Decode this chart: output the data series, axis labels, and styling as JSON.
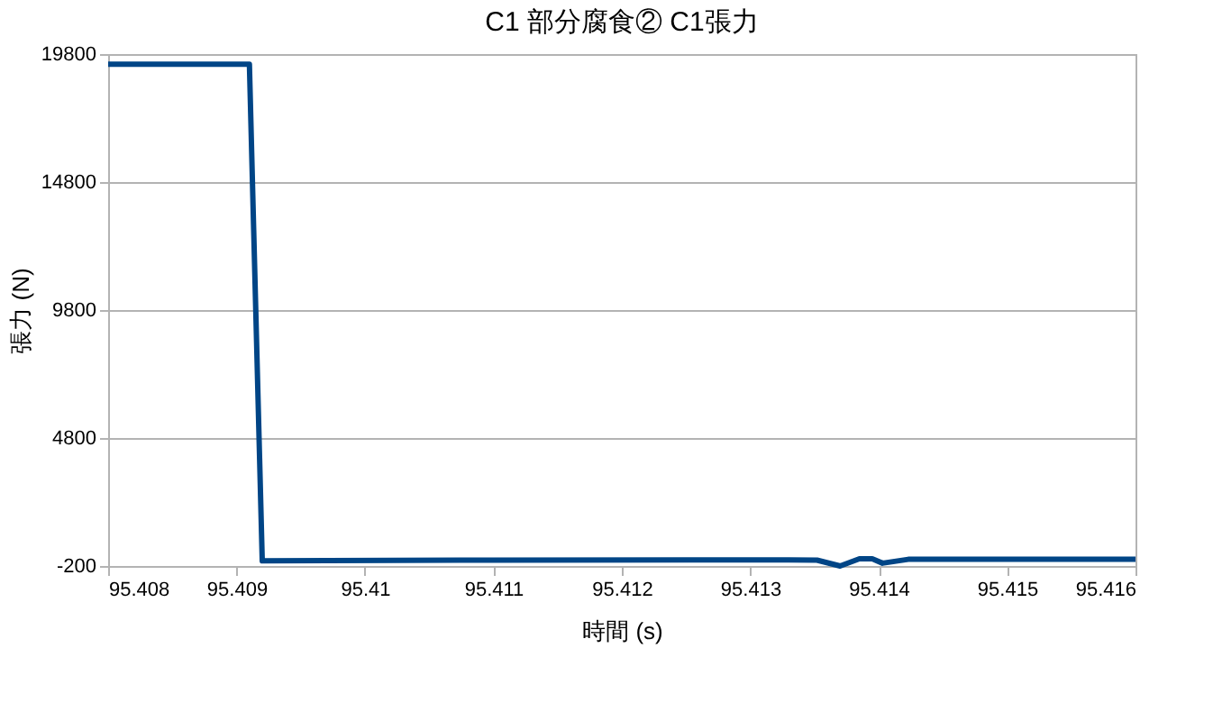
{
  "chart_data": {
    "type": "line",
    "title": "C1 部分腐食② C1張力",
    "xlabel": "時間 (s)",
    "ylabel": "張力 (N)",
    "x": [
      95.408,
      95.4091,
      95.4092,
      95.411,
      95.4133,
      95.41352,
      95.4137,
      95.41385,
      95.41395,
      95.41403,
      95.41423,
      95.416
    ],
    "series": [
      {
        "color": "#004586",
        "values": [
          19400,
          19400,
          0,
          30,
          40,
          30,
          -200,
          80,
          80,
          -90,
          60,
          60
        ]
      }
    ],
    "xlim": [
      95.408,
      95.416
    ],
    "xticks": [
      95.408,
      95.409,
      95.41,
      95.411,
      95.412,
      95.413,
      95.414,
      95.415,
      95.416
    ],
    "ylim": [
      -200,
      19800
    ],
    "yticks": [
      -200,
      4800,
      9800,
      14800,
      19800
    ],
    "grid": "y",
    "marker": "none",
    "line_style": "solid"
  }
}
